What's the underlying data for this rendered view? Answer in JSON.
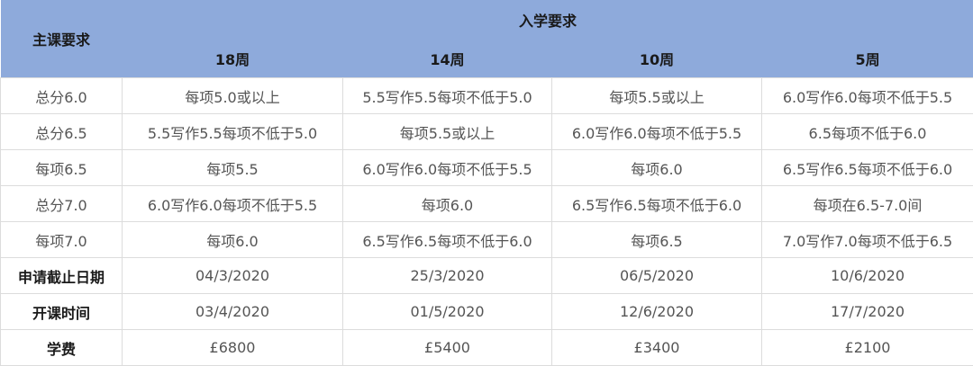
{
  "header": {
    "main_course": "主课要求",
    "entry_requirements": "入学要求",
    "durations": [
      "18周",
      "14周",
      "10周",
      "5周"
    ]
  },
  "rows": [
    {
      "label": "总分6.0",
      "bold": false,
      "cells": [
        "每项5.0或以上",
        "5.5写作5.5每项不低于5.0",
        "每项5.5或以上",
        "6.0写作6.0每项不低于5.5"
      ]
    },
    {
      "label": "总分6.5",
      "bold": false,
      "cells": [
        "5.5写作5.5每项不低于5.0",
        "每项5.5或以上",
        "6.0写作6.0每项不低于5.5",
        "6.5每项不低于6.0"
      ]
    },
    {
      "label": "每项6.5",
      "bold": false,
      "cells": [
        "每项5.5",
        "6.0写作6.0每项不低于5.5",
        "每项6.0",
        "6.5写作6.5每项不低于6.0"
      ]
    },
    {
      "label": "总分7.0",
      "bold": false,
      "cells": [
        "6.0写作6.0每项不低于5.5",
        "每项6.0",
        "6.5写作6.5每项不低于6.0",
        "每项在6.5-7.0间"
      ]
    },
    {
      "label": "每项7.0",
      "bold": false,
      "cells": [
        "每项6.0",
        "6.5写作6.5每项不低于6.0",
        "每项6.5",
        "7.0写作7.0每项不低于6.5"
      ]
    },
    {
      "label": "申请截止日期",
      "bold": true,
      "cells": [
        "04/3/2020",
        "25/3/2020",
        "06/5/2020",
        "10/6/2020"
      ]
    },
    {
      "label": "开课时间",
      "bold": true,
      "cells": [
        "03/4/2020",
        "01/5/2020",
        "12/6/2020",
        "17/7/2020"
      ]
    },
    {
      "label": "学费",
      "bold": true,
      "cells": [
        "£6800",
        "£5400",
        "£3400",
        "£2100"
      ]
    }
  ],
  "colors": {
    "header_bg": "#8eaadb",
    "border": "#dcdcdc"
  }
}
